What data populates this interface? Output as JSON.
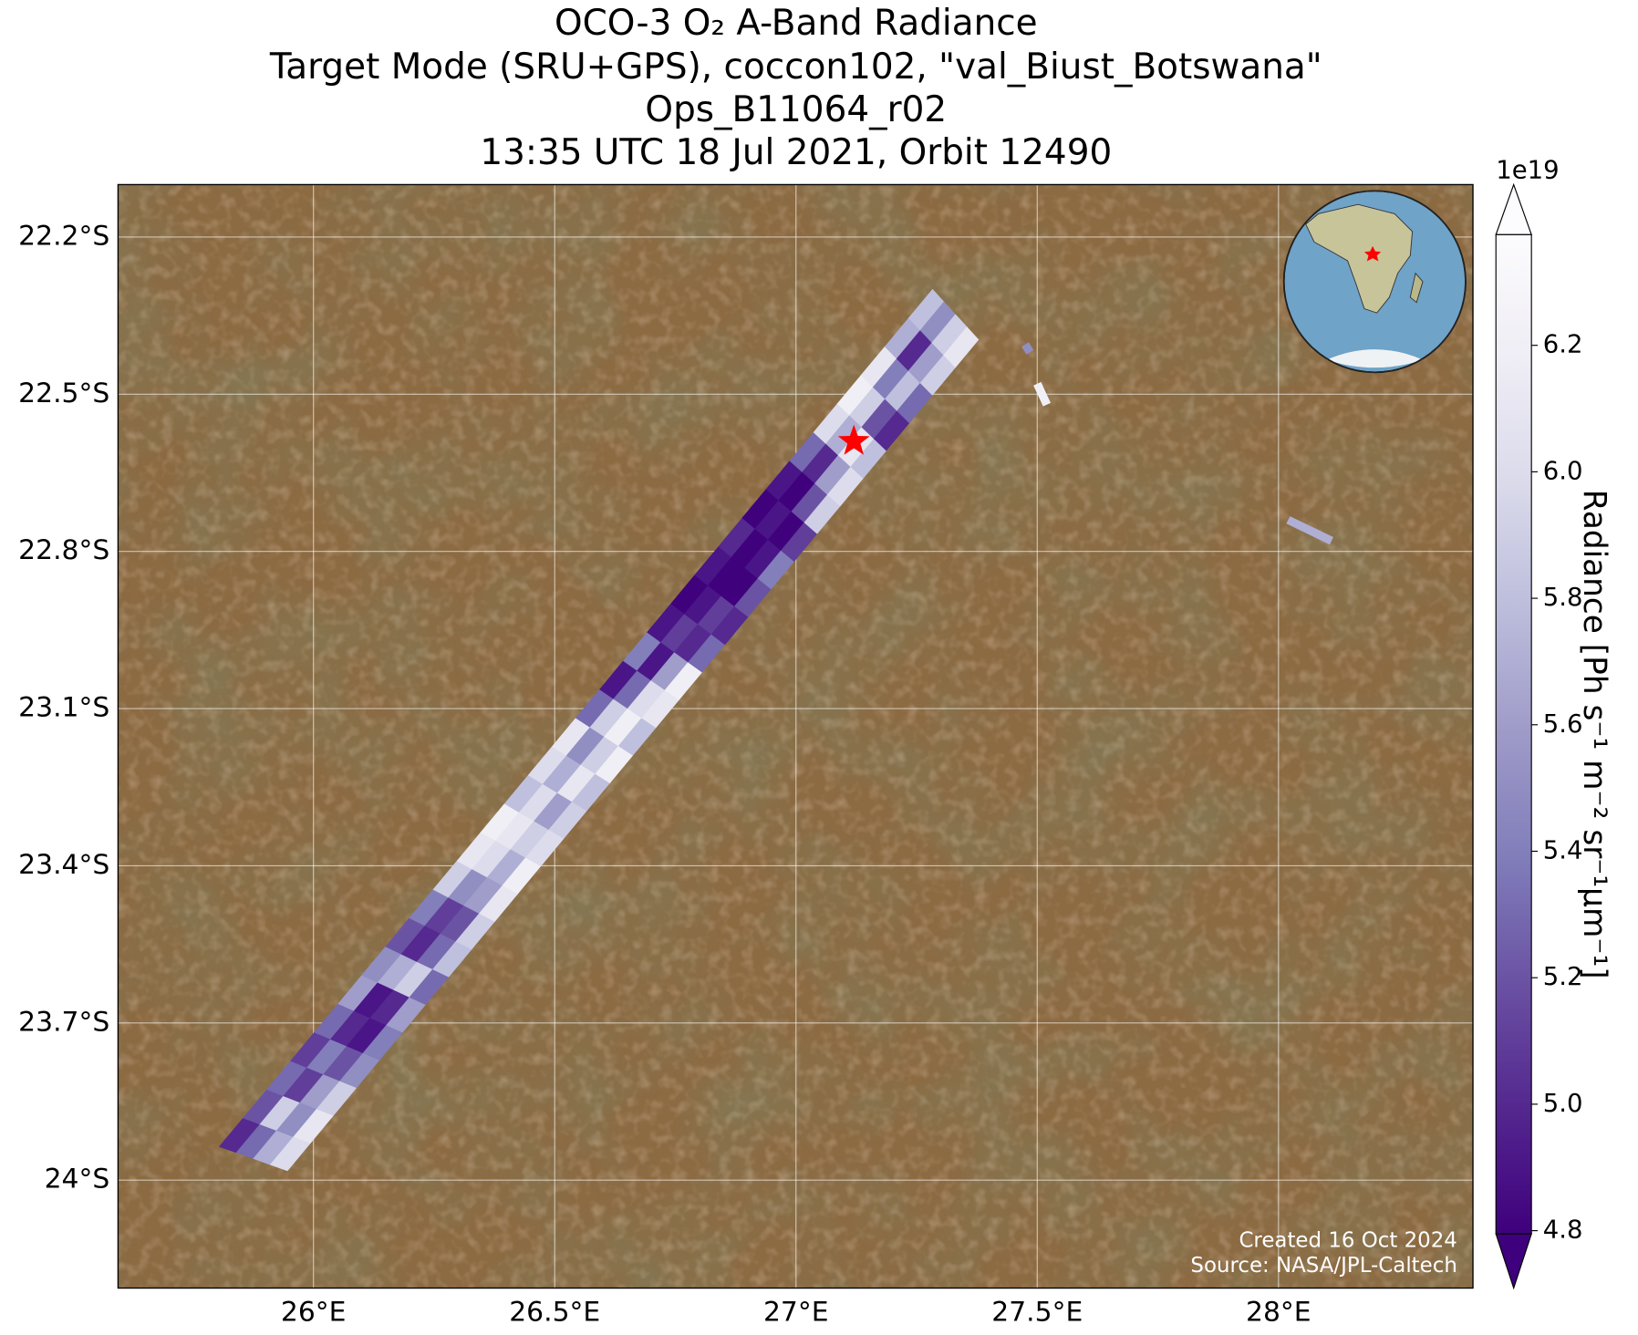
{
  "title": [
    "OCO-3 O₂ A-Band Radiance",
    "Target Mode (SRU+GPS), coccon102, \"val_Biust_Botswana\"",
    "Ops_B11064_r02",
    "13:35 UTC 18 Jul 2021, Orbit 12490"
  ],
  "map": {
    "xlim": [
      25.595,
      28.403
    ],
    "ylim": [
      -24.206,
      -22.1
    ],
    "xticks": [
      {
        "value": 26,
        "label": "26°E"
      },
      {
        "value": 26.5,
        "label": "26.5°E"
      },
      {
        "value": 27,
        "label": "27°E"
      },
      {
        "value": 27.5,
        "label": "27.5°E"
      },
      {
        "value": 28,
        "label": "28°E"
      }
    ],
    "yticks": [
      {
        "value": -22.2,
        "label": "22.2°S"
      },
      {
        "value": -22.5,
        "label": "22.5°S"
      },
      {
        "value": -22.8,
        "label": "22.8°S"
      },
      {
        "value": -23.1,
        "label": "23.1°S"
      },
      {
        "value": -23.4,
        "label": "23.4°S"
      },
      {
        "value": -23.7,
        "label": "23.7°S"
      },
      {
        "value": -24,
        "label": "24°S"
      }
    ],
    "grid": true
  },
  "swath": {
    "start_left": [
      25.805,
      -23.936
    ],
    "start_right": [
      25.946,
      -23.982
    ],
    "end_left": [
      27.283,
      -22.3
    ],
    "end_right": [
      27.378,
      -22.396
    ],
    "values": [
      [
        5.0,
        5.3,
        5.7,
        6.0
      ],
      [
        5.2,
        5.9,
        5.5,
        6.1
      ],
      [
        5.3,
        5.1,
        5.6,
        5.9
      ],
      [
        5.1,
        5.4,
        5.2,
        5.5
      ],
      [
        5.3,
        5.0,
        4.9,
        5.4
      ],
      [
        5.6,
        4.9,
        5.0,
        5.6
      ],
      [
        5.5,
        5.7,
        5.9,
        5.3
      ],
      [
        5.2,
        5.0,
        5.3,
        5.8
      ],
      [
        5.4,
        5.1,
        5.2,
        5.9
      ],
      [
        5.9,
        5.5,
        5.6,
        6.1
      ],
      [
        6.1,
        6.0,
        5.7,
        6.2
      ],
      [
        6.2,
        6.1,
        5.9,
        6.0
      ],
      [
        5.8,
        6.0,
        5.6,
        5.9
      ],
      [
        6.0,
        5.7,
        6.1,
        5.8
      ],
      [
        6.1,
        5.5,
        5.9,
        6.2
      ],
      [
        5.3,
        5.9,
        6.2,
        5.8
      ],
      [
        4.9,
        5.3,
        6.0,
        6.1
      ],
      [
        5.4,
        4.9,
        5.6,
        6.2
      ],
      [
        4.9,
        5.1,
        5.0,
        5.3
      ],
      [
        4.8,
        4.9,
        5.1,
        5.0
      ],
      [
        4.9,
        4.8,
        4.8,
        5.2
      ],
      [
        5.0,
        4.8,
        4.9,
        5.4
      ],
      [
        4.8,
        4.9,
        4.8,
        5.1
      ],
      [
        4.9,
        4.8,
        5.2,
        5.9
      ],
      [
        5.3,
        5.0,
        5.6,
        6.0
      ],
      [
        6.0,
        5.7,
        6.1,
        5.8
      ],
      [
        6.2,
        5.9,
        5.2,
        5.0
      ],
      [
        6.1,
        5.4,
        5.8,
        5.3
      ],
      [
        5.7,
        5.0,
        5.6,
        5.9
      ],
      [
        5.8,
        5.5,
        5.9,
        6.1
      ]
    ]
  },
  "fragments": [
    {
      "lon": [
        27.475,
        27.485
      ],
      "lat": [
        -22.405,
        -22.42
      ],
      "value": 5.5
    },
    {
      "lon": [
        27.5,
        27.52
      ],
      "lat": [
        -22.48,
        -22.52
      ],
      "value": 6.2
    },
    {
      "lon": [
        28.02,
        28.11
      ],
      "lat": [
        -22.74,
        -22.78
      ],
      "value": 5.7
    }
  ],
  "site": {
    "lon": 27.12,
    "lat": -22.59,
    "color": "#ff0000"
  },
  "colorbar": {
    "label": "Radiance [Ph s⁻¹ m⁻² sr⁻¹μm⁻¹]",
    "exponent": "1e19",
    "clim": [
      4.795,
      6.375
    ],
    "ticks": [
      4.8,
      {
        "value": 5,
        "label": "5.0"
      },
      5.2,
      5.4,
      5.6,
      5.8,
      {
        "value": 6,
        "label": "6.0"
      },
      6.2
    ],
    "colormap": [
      "#3f007d",
      "#54278f",
      "#6a51a3",
      "#807dba",
      "#9e9ac8",
      "#bcbddc",
      "#dadaeb",
      "#efedf5",
      "#fcfbfd"
    ]
  },
  "credits": [
    "Created 16 Oct 2024",
    "Source: NASA/JPL-Caltech"
  ]
}
